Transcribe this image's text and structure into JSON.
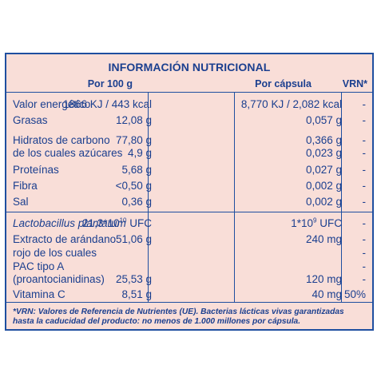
{
  "table": {
    "title": "INFORMACIÓN NUTRICIONAL",
    "headers": {
      "per100": "Por 100 g",
      "perCapsule": "Por cápsula",
      "vrn": "VRN*"
    },
    "rows": [
      {
        "label": "Valor energético",
        "per100": "1866 KJ / 443 kcal",
        "perCapsule": "8,770 KJ / 2,082 kcal",
        "vrn": "-"
      },
      {
        "label": "Grasas",
        "per100": "12,08 g",
        "perCapsule": "0,057 g",
        "vrn": "-"
      },
      {
        "label": "Hidratos de carbono",
        "per100": "77,80 g",
        "perCapsule": "0,366 g",
        "vrn": "-"
      },
      {
        "label": "de los cuales azúcares",
        "per100": "4,9 g",
        "perCapsule": "0,023 g",
        "vrn": "-"
      },
      {
        "label": "Proteínas",
        "per100": "5,68 g",
        "perCapsule": "0,027 g",
        "vrn": "-"
      },
      {
        "label": "Fibra",
        "per100": "<0,50 g",
        "perCapsule": "0,002 g",
        "vrn": "-"
      },
      {
        "label": "Sal",
        "per100": "0,36 g",
        "perCapsule": "0,002 g",
        "vrn": "-"
      }
    ],
    "probiotic": {
      "label": "Lactobacillus plantarum",
      "per100_base": "21,3*10",
      "per100_exp": "10",
      "per100_unit": " UFC",
      "perCapsule_base": "1*10",
      "perCapsule_exp": "9",
      "perCapsule_unit": " UFC",
      "vrn": "-"
    },
    "extract": {
      "line1": "Extracto de arándano",
      "line1_per100": "51,06 g",
      "line1_perCapsule": "240 mg",
      "line1_vrn": "-",
      "line2": "rojo de los cuales",
      "line2_vrn": "-",
      "line3": "PAC tipo A",
      "line3_vrn": "-",
      "line4": "(proantocianidinas)",
      "line4_per100": "25,53 g",
      "line4_perCapsule": "120 mg",
      "line4_vrn": "-"
    },
    "vitaminC": {
      "label": "Vitamina C",
      "per100": "8,51 g",
      "perCapsule": "40 mg",
      "vrn": "50%"
    },
    "footnote": {
      "line1": "*VRN: Valores de Referencia de Nutrientes (UE). Bacterias lácticas vivas garantizadas",
      "line2": "hasta la caducidad del producto: no menos de 1.000 millones por cápsula."
    }
  }
}
